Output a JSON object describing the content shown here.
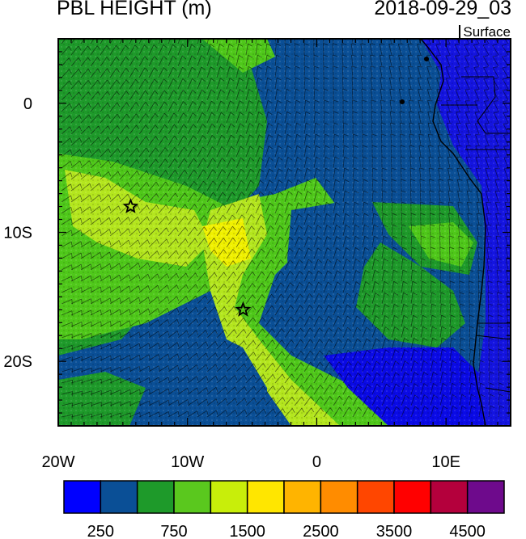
{
  "title": {
    "variable": "PBL HEIGHT (m)",
    "datetime": "2018-09-29_03",
    "level": "Surface"
  },
  "map": {
    "lon_range": [
      -20,
      15
    ],
    "lat_range": [
      -25,
      5
    ],
    "x_ticks": [
      {
        "lon": -20,
        "label": "20W"
      },
      {
        "lon": -10,
        "label": "10W"
      },
      {
        "lon": 0,
        "label": "0"
      },
      {
        "lon": 10,
        "label": "10E"
      }
    ],
    "y_ticks": [
      {
        "lat": 0,
        "label": "0"
      },
      {
        "lat": -10,
        "label": "10S"
      },
      {
        "lat": -20,
        "label": "20S"
      }
    ],
    "markers": [
      {
        "name": "star-marker-ascension",
        "lon": -14.4,
        "lat": -8.0
      },
      {
        "name": "star-marker-st-helena",
        "lon": -5.7,
        "lat": -16.0
      }
    ],
    "field_colors": {
      "deep_blue": "#0a0ae6",
      "navy": "#0a4f96",
      "dark_green": "#1e9a2a",
      "mid_green": "#4fc81a",
      "yellow_green": "#b4e61e",
      "yellow": "#f0f000",
      "land_blue": "#1414e0"
    }
  },
  "colorbar": {
    "colors": [
      "#0000ff",
      "#0a4f96",
      "#1e9a2a",
      "#5ac81e",
      "#c8ee0a",
      "#ffe600",
      "#ffb400",
      "#ff8c00",
      "#ff4600",
      "#ff0000",
      "#b4003c",
      "#6e0a8c"
    ],
    "labels": [
      "250",
      "750",
      "1500",
      "2500",
      "3500",
      "4500"
    ]
  }
}
